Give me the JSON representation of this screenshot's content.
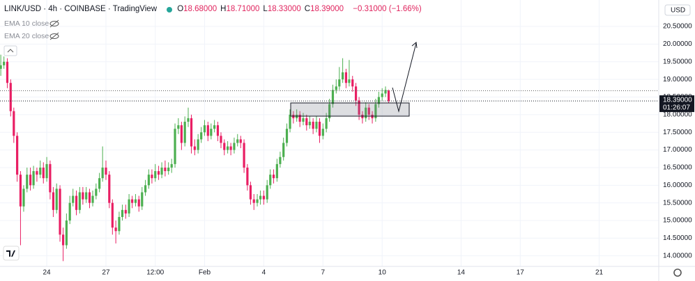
{
  "header": {
    "title": "LINK/USD · 4h · COINBASE · TradingView",
    "ohlc": [
      {
        "key": "O",
        "value": "18.68000"
      },
      {
        "key": "H",
        "value": "18.71000"
      },
      {
        "key": "L",
        "value": "18.33000"
      },
      {
        "key": "C",
        "value": "18.39000"
      }
    ],
    "change": "−0.31000 (−1.66%)",
    "indicators": [
      "EMA 10 close",
      "EMA 20 close"
    ],
    "currency": "USD"
  },
  "chart_data": {
    "type": "candlestick",
    "up_color": "#4caf50",
    "down_color": "#e91e63",
    "grid": true,
    "x": [
      21.67,
      21.83,
      22,
      22.17,
      22.33,
      22.5,
      22.67,
      22.83,
      23,
      23.17,
      23.33,
      23.5,
      23.67,
      23.83,
      24,
      24.17,
      24.33,
      24.5,
      24.67,
      24.83,
      25,
      25.17,
      25.33,
      25.5,
      25.67,
      25.83,
      26,
      26.17,
      26.33,
      26.5,
      26.67,
      26.83,
      27,
      27.17,
      27.33,
      27.5,
      27.67,
      27.83,
      28,
      28.17,
      28.33,
      28.5,
      28.67,
      28.83,
      29,
      29.17,
      29.33,
      29.5,
      29.67,
      29.83,
      30,
      30.17,
      30.33,
      30.5,
      30.67,
      30.83,
      31,
      31.17,
      31.33,
      31.5,
      31.67,
      31.83,
      32,
      32.17,
      32.33,
      32.5,
      32.67,
      32.83,
      33,
      33.17,
      33.33,
      33.5,
      33.67,
      33.83,
      34,
      34.17,
      34.33,
      34.5,
      34.67,
      34.83,
      35,
      35.17,
      35.33,
      35.5,
      35.67,
      35.83,
      36,
      36.17,
      36.33,
      36.5,
      36.67,
      36.83,
      37,
      37.17,
      37.33,
      37.5,
      37.67,
      37.83,
      38,
      38.17,
      38.33,
      38.5,
      38.67,
      38.83,
      39,
      39.17,
      39.33,
      39.5,
      39.67,
      39.83,
      40,
      40.17,
      40.33,
      40.5,
      40.67,
      40.83,
      41,
      41.17,
      41.33
    ],
    "open": [
      19.3,
      19.4,
      19.5,
      18.9,
      18.1,
      17.4,
      16.3,
      15.4,
      15.9,
      16.3,
      16.0,
      16.4,
      16.3,
      16.5,
      16.2,
      16.6,
      15.8,
      15.3,
      15.9,
      14.6,
      14.3,
      15.0,
      15.5,
      15.7,
      15.3,
      15.8,
      15.6,
      15.8,
      15.5,
      15.7,
      15.9,
      16.2,
      16.5,
      16.3,
      15.5,
      14.8,
      14.7,
      15.1,
      15.3,
      15.2,
      15.6,
      15.5,
      15.6,
      15.4,
      15.8,
      16.0,
      16.3,
      16.2,
      16.4,
      16.3,
      16.5,
      16.4,
      16.5,
      16.6,
      17.6,
      17.7,
      17.2,
      17.8,
      17.9,
      17.1,
      17.0,
      17.3,
      17.5,
      17.7,
      17.4,
      17.6,
      17.7,
      17.4,
      17.2,
      17.0,
      17.1,
      17.0,
      17.2,
      17.3,
      17.2,
      16.5,
      16.0,
      15.6,
      15.5,
      15.6,
      15.7,
      15.6,
      16.0,
      16.3,
      16.2,
      16.6,
      16.8,
      17.2,
      17.6,
      18.0,
      17.9,
      18.0,
      17.8,
      17.9,
      17.7,
      17.8,
      17.6,
      17.8,
      17.4,
      17.6,
      17.9,
      18.3,
      18.7,
      18.8,
      19.0,
      19.2,
      18.9,
      19.0,
      18.8,
      18.4,
      18.0,
      17.9,
      18.2,
      18.0,
      17.9,
      18.3,
      18.5,
      18.6,
      18.68
    ],
    "high": [
      19.7,
      19.65,
      19.6,
      19.0,
      18.2,
      17.5,
      16.4,
      16.0,
      16.5,
      16.5,
      16.55,
      16.5,
      16.7,
      16.65,
      16.8,
      16.7,
      15.95,
      16.05,
      16.0,
      14.8,
      15.2,
      15.7,
      15.9,
      15.85,
      15.95,
      15.95,
      15.95,
      15.9,
      15.85,
      16.05,
      16.35,
      17.1,
      16.7,
      16.4,
      15.6,
      15.0,
      15.25,
      15.45,
      15.45,
      15.75,
      15.7,
      15.75,
      15.7,
      15.95,
      16.15,
      16.45,
      16.45,
      16.6,
      16.55,
      16.65,
      16.7,
      16.65,
      16.75,
      17.75,
      17.9,
      17.8,
      17.95,
      18.2,
      18.0,
      17.3,
      17.45,
      17.65,
      17.85,
      17.8,
      17.75,
      17.85,
      17.8,
      17.5,
      17.3,
      17.25,
      17.2,
      17.35,
      17.45,
      17.4,
      17.3,
      16.6,
      16.1,
      15.75,
      15.75,
      15.85,
      15.85,
      16.15,
      16.45,
      16.45,
      16.75,
      16.95,
      17.35,
      17.75,
      18.15,
      18.1,
      18.15,
      18.1,
      18.05,
      18.0,
      17.95,
      17.9,
      17.95,
      17.9,
      17.75,
      18.05,
      18.45,
      18.85,
      19.0,
      19.35,
      19.6,
      19.3,
      19.55,
      19.1,
      18.9,
      18.5,
      18.1,
      18.35,
      18.3,
      18.1,
      18.45,
      18.65,
      18.75,
      18.8,
      18.71
    ],
    "low": [
      19.1,
      19.3,
      18.75,
      17.95,
      17.2,
      16.1,
      14.3,
      15.25,
      15.8,
      15.85,
      15.9,
      16.1,
      16.2,
      16.05,
      16.1,
      15.6,
      15.1,
      15.2,
      14.4,
      13.85,
      14.2,
      14.9,
      15.4,
      15.15,
      15.2,
      15.45,
      15.5,
      15.35,
      15.4,
      15.6,
      15.8,
      16.1,
      16.15,
      15.35,
      14.6,
      14.35,
      14.6,
      15.0,
      15.05,
      15.1,
      15.35,
      15.4,
      15.25,
      15.3,
      15.7,
      15.9,
      16.05,
      16.1,
      16.15,
      16.2,
      16.25,
      16.3,
      16.35,
      16.5,
      17.45,
      17.0,
      17.1,
      17.65,
      16.9,
      16.85,
      16.9,
      17.2,
      17.4,
      17.25,
      17.3,
      17.5,
      17.25,
      17.05,
      16.85,
      16.9,
      16.85,
      16.9,
      17.1,
      17.05,
      16.35,
      15.85,
      15.45,
      15.3,
      15.4,
      15.45,
      15.45,
      15.5,
      15.9,
      16.05,
      16.1,
      16.5,
      16.7,
      17.1,
      17.5,
      17.75,
      17.8,
      17.65,
      17.7,
      17.55,
      17.6,
      17.45,
      17.5,
      17.2,
      17.3,
      17.5,
      17.8,
      18.2,
      18.6,
      18.7,
      18.9,
      18.75,
      18.8,
      18.65,
      18.25,
      17.85,
      17.75,
      17.8,
      17.85,
      17.75,
      17.8,
      18.2,
      18.4,
      18.5,
      18.33
    ],
    "close": [
      19.4,
      19.5,
      18.9,
      18.1,
      17.4,
      16.3,
      15.4,
      15.9,
      16.3,
      16.0,
      16.4,
      16.3,
      16.5,
      16.2,
      16.6,
      15.8,
      15.3,
      15.9,
      14.6,
      14.3,
      15.0,
      15.5,
      15.7,
      15.3,
      15.8,
      15.6,
      15.8,
      15.5,
      15.7,
      15.9,
      16.2,
      16.5,
      16.3,
      15.5,
      14.8,
      14.7,
      15.1,
      15.3,
      15.2,
      15.6,
      15.5,
      15.6,
      15.4,
      15.8,
      16.0,
      16.3,
      16.2,
      16.4,
      16.3,
      16.5,
      16.4,
      16.5,
      16.6,
      17.6,
      17.7,
      17.2,
      17.8,
      17.9,
      17.1,
      17.0,
      17.3,
      17.5,
      17.7,
      17.4,
      17.6,
      17.7,
      17.4,
      17.2,
      17.0,
      17.1,
      17.0,
      17.2,
      17.3,
      17.2,
      16.5,
      16.0,
      15.6,
      15.5,
      15.6,
      15.7,
      15.6,
      16.0,
      16.3,
      16.2,
      16.6,
      16.8,
      17.2,
      17.6,
      18.0,
      17.9,
      18.0,
      17.8,
      17.9,
      17.7,
      17.8,
      17.6,
      17.8,
      17.4,
      17.6,
      17.9,
      18.3,
      18.7,
      18.8,
      19.0,
      19.2,
      18.9,
      19.0,
      18.8,
      18.4,
      18.0,
      17.9,
      18.2,
      18.0,
      17.9,
      18.3,
      18.5,
      18.6,
      18.7,
      18.39
    ],
    "xlim": [
      21.63,
      55.02
    ],
    "ylim": [
      13.7,
      21.25
    ],
    "xticks": [
      {
        "value": 24,
        "label": "24"
      },
      {
        "value": 27,
        "label": "27"
      },
      {
        "value": 29.5,
        "label": "12:00"
      },
      {
        "value": 32,
        "label": "Feb"
      },
      {
        "value": 35,
        "label": "4"
      },
      {
        "value": 38,
        "label": "7"
      },
      {
        "value": 41,
        "label": "10"
      },
      {
        "value": 45,
        "label": "14"
      },
      {
        "value": 48,
        "label": "17"
      },
      {
        "value": 52,
        "label": "21"
      }
    ],
    "yticks": [
      {
        "value": 14,
        "label": "14.00000"
      },
      {
        "value": 14.5,
        "label": "14.50000"
      },
      {
        "value": 15,
        "label": "15.00000"
      },
      {
        "value": 15.5,
        "label": "15.50000"
      },
      {
        "value": 16,
        "label": "16.00000"
      },
      {
        "value": 16.5,
        "label": "16.50000"
      },
      {
        "value": 17,
        "label": "17.00000"
      },
      {
        "value": 17.5,
        "label": "17.50000"
      },
      {
        "value": 18,
        "label": "18.00000"
      },
      {
        "value": 18.5,
        "label": "18.50000"
      },
      {
        "value": 19,
        "label": "19.00000"
      },
      {
        "value": 19.5,
        "label": "19.50000"
      },
      {
        "value": 20,
        "label": "20.00000"
      },
      {
        "value": 20.5,
        "label": "20.50000"
      }
    ],
    "price_line": {
      "value": 18.39,
      "label": "18.39000",
      "countdown": "01:26:07"
    }
  }
}
